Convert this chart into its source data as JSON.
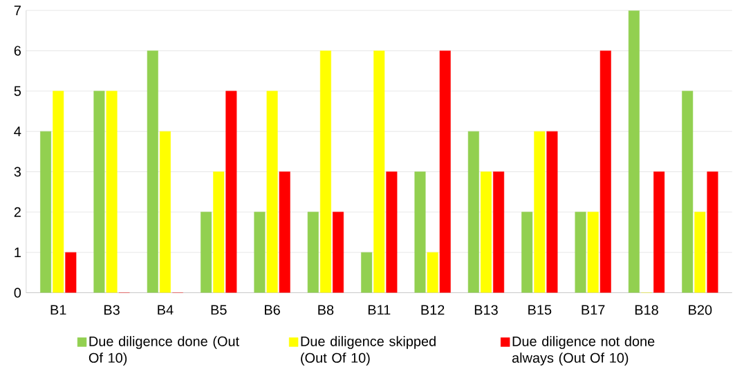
{
  "chart_data": {
    "type": "bar",
    "categories": [
      "B1",
      "B3",
      "B4",
      "B5",
      "B6",
      "B8",
      "B11",
      "B12",
      "B13",
      "B15",
      "B17",
      "B18",
      "B20"
    ],
    "series": [
      {
        "name": "Due diligence done (Out Of 10)",
        "color": "#92d050",
        "values": [
          4,
          5,
          6,
          2,
          2,
          2,
          1,
          3,
          4,
          2,
          2,
          7,
          5
        ]
      },
      {
        "name": "Due diligence skipped (Out Of 10)",
        "color": "#ffff00",
        "values": [
          5,
          5,
          4,
          3,
          5,
          6,
          6,
          1,
          3,
          4,
          2,
          0,
          2
        ]
      },
      {
        "name": "Due diligence not done always (Out Of 10)",
        "color": "#ff0000",
        "values": [
          1,
          0,
          0,
          5,
          3,
          2,
          3,
          6,
          3,
          4,
          6,
          3,
          3
        ]
      }
    ],
    "ylim": [
      0,
      7
    ],
    "yticks": [
      0,
      1,
      2,
      3,
      4,
      5,
      6,
      7
    ],
    "grid": "y",
    "legend": "bottom"
  }
}
